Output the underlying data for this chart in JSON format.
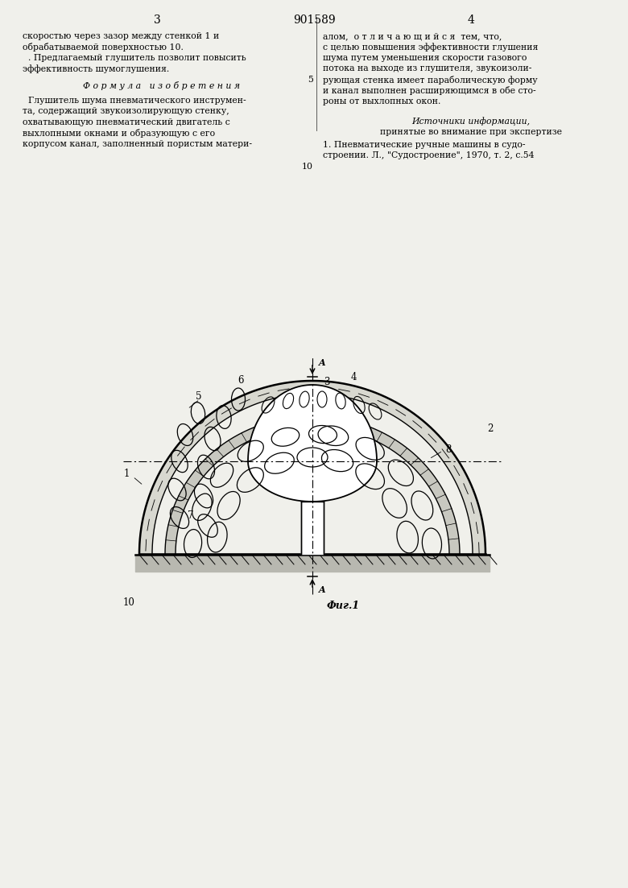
{
  "bg_color": "#f2f2ee",
  "header": {
    "page_left": "3",
    "patent_num": "901589",
    "page_right": "4"
  },
  "left_col_lines": [
    "скоростью через зазор между стенкой 1 и",
    "обрабатываемой поверхностью 10.",
    "  . Предлагаемый глушитель позволит повысить",
    "эффективность шумоглушения."
  ],
  "formula_title": "Ф о р м у л а   и з о б р е т е н и я",
  "left_formula_lines": [
    "  Глушитель шума пневматического инструмен-",
    "та, содержащий звукоизолирующую стенку,",
    "охватывающую пневматический двигатель с",
    "выхлопными окнами и образующую с его",
    "корпусом канал, заполненный пористым матери-"
  ],
  "right_col_start": "алом,  о т л и ч а ю щ и й с я  тем, что,",
  "right_col_lines": [
    "с целью повышения эффективности глушения",
    "шума путем уменьшения скорости газового",
    "потока на выходе из глушителя, звукоизоли-",
    "рующая стенка имеет параболическую форму",
    "и канал выполнен расширяющимся в обе сто-",
    "роны от выхлопных окон."
  ],
  "line_num_5": "5",
  "line_num_10": "10",
  "sources_title": "Источники информации,",
  "sources_subtitle": "принятые во внимание при экспертизе",
  "source_1a": "1. Пневматические ручные машины в судо-",
  "source_1b": "строении. Л., \"Судостроение\", 1970, т. 2, с.54",
  "fig_caption": "Фиг.1"
}
